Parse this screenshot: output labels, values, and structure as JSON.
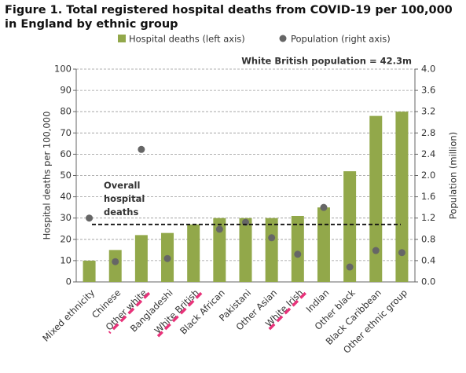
{
  "chart_data": {
    "type": "bar",
    "title": "Figure 1. Total registered hospital deaths from COVID-19 per 100,000 in England by ethnic group",
    "categories": [
      "Mixed ethnicity",
      "Chinese",
      "Other white",
      "Bangladeshi",
      "White British",
      "Black African",
      "Pakistani",
      "Other Asian",
      "White Irish",
      "Indian",
      "Other black",
      "Black Caribbean",
      "Other ethnic group"
    ],
    "highlighted": [
      false,
      false,
      true,
      false,
      true,
      false,
      false,
      false,
      true,
      false,
      false,
      false,
      false
    ],
    "highlight_color": "#e8337a",
    "series": [
      {
        "name": "Hospital deaths (left axis)",
        "type": "bar",
        "color": "#92a84a",
        "values": [
          10,
          15,
          22,
          23,
          27,
          30,
          30,
          30,
          31,
          35,
          52,
          78,
          80
        ]
      },
      {
        "name": "Population (right axis)",
        "type": "scatter",
        "axis": "y2",
        "color": "#666666",
        "values": [
          1.2,
          0.38,
          2.49,
          0.44,
          null,
          0.99,
          1.12,
          0.83,
          0.52,
          1.4,
          0.28,
          0.59,
          0.55
        ]
      }
    ],
    "ylabel": "Hospital deaths per 100,000",
    "y2label": "Population (million)",
    "ylim": [
      0,
      100
    ],
    "yticks": [
      0,
      10,
      20,
      30,
      40,
      50,
      60,
      70,
      80,
      90,
      100
    ],
    "y2lim": [
      0,
      4
    ],
    "y2ticks": [
      {
        "value": 0,
        "label": "0.0"
      },
      0.4,
      0.8,
      1.2,
      1.6,
      {
        "value": 2,
        "label": "2.0"
      },
      2.4,
      2.8,
      3.2,
      3.6,
      {
        "value": 4,
        "label": "4.0"
      }
    ],
    "grid": true,
    "reference_line": {
      "value": 27,
      "label": "Overall hospital deaths"
    },
    "annotation": "White British population = 42.3m"
  }
}
